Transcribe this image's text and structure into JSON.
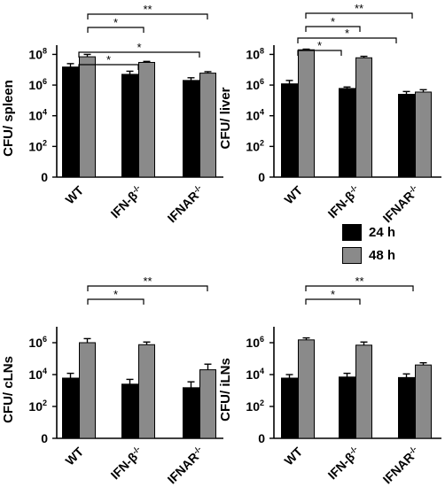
{
  "colors": {
    "series_24h": "#000000",
    "series_48h": "#8a8a8a"
  },
  "legend": {
    "items": [
      {
        "label": "24 h",
        "color": "#000000"
      },
      {
        "label": "48 h",
        "color": "#8a8a8a"
      }
    ]
  },
  "chart_data": [
    {
      "type": "bar",
      "scale": "log10",
      "ylabel": "CFU/ spleen",
      "categories": [
        "WT",
        "IFN-β",
        "IFNAR"
      ],
      "category_superscripts": [
        "",
        "-/-",
        "-/-"
      ],
      "ylim": [
        1,
        400000000
      ],
      "yticks": [
        {
          "value": 1,
          "label": "0"
        },
        {
          "value": 100,
          "label": "10",
          "sup": "2"
        },
        {
          "value": 10000,
          "label": "10",
          "sup": "4"
        },
        {
          "value": 1000000,
          "label": "10",
          "sup": "6"
        },
        {
          "value": 100000000,
          "label": "10",
          "sup": "8"
        }
      ],
      "series": [
        {
          "name": "24 h",
          "values": [
            15000000,
            5000000,
            2000000
          ],
          "errors": [
            25000000,
            8000000,
            3000000
          ]
        },
        {
          "name": "48 h",
          "values": [
            70000000,
            30000000,
            6000000
          ],
          "errors": [
            100000000,
            35000000,
            7500000
          ]
        }
      ],
      "significance": [
        {
          "from": 0,
          "to": 1,
          "label": "*"
        },
        {
          "from": 0,
          "to": 2,
          "label": "*"
        },
        {
          "from": 0,
          "to": 1,
          "label": "*"
        },
        {
          "from": 0,
          "to": 2,
          "label": "**"
        }
      ]
    },
    {
      "type": "bar",
      "scale": "log10",
      "ylabel": "CFU/ liver",
      "categories": [
        "WT",
        "IFN-β",
        "IFNAR"
      ],
      "category_superscripts": [
        "",
        "-/-",
        "-/-"
      ],
      "ylim": [
        1,
        400000000
      ],
      "yticks": [
        {
          "value": 1,
          "label": "0"
        },
        {
          "value": 100,
          "label": "10",
          "sup": "2"
        },
        {
          "value": 10000,
          "label": "10",
          "sup": "4"
        },
        {
          "value": 1000000,
          "label": "10",
          "sup": "6"
        },
        {
          "value": 100000000,
          "label": "10",
          "sup": "8"
        }
      ],
      "series": [
        {
          "name": "24 h",
          "values": [
            1200000,
            600000,
            250000
          ],
          "errors": [
            2000000,
            750000,
            380000
          ]
        },
        {
          "name": "48 h",
          "values": [
            200000000,
            60000000,
            350000
          ],
          "errors": [
            220000000,
            75000000,
            500000
          ]
        }
      ],
      "significance": [
        {
          "from": 0,
          "to": 1,
          "label": "*"
        },
        {
          "from": 0,
          "to": 2,
          "label": "*"
        },
        {
          "from": 0,
          "to": 1,
          "label": "*"
        },
        {
          "from": 0,
          "to": 2,
          "label": "**"
        }
      ]
    },
    {
      "type": "bar",
      "scale": "log10",
      "ylabel": "CFU/ cLNs",
      "categories": [
        "WT",
        "IFN-β",
        "IFNAR"
      ],
      "category_superscripts": [
        "",
        "-/-",
        "-/-"
      ],
      "ylim": [
        1,
        10000000
      ],
      "yticks": [
        {
          "value": 1,
          "label": "0"
        },
        {
          "value": 100,
          "label": "10",
          "sup": "2"
        },
        {
          "value": 10000,
          "label": "10",
          "sup": "4"
        },
        {
          "value": 1000000,
          "label": "10",
          "sup": "6"
        }
      ],
      "series": [
        {
          "name": "24 h",
          "values": [
            6000,
            2500,
            1500
          ],
          "errors": [
            12000,
            5000,
            3500
          ]
        },
        {
          "name": "48 h",
          "values": [
            1000000,
            750000,
            20000
          ],
          "errors": [
            1800000,
            1100000,
            45000
          ]
        }
      ],
      "significance": [
        {
          "from": 0,
          "to": 1,
          "label": "*"
        },
        {
          "from": 0,
          "to": 2,
          "label": "**"
        }
      ]
    },
    {
      "type": "bar",
      "scale": "log10",
      "ylabel": "CFU/ iLNs",
      "categories": [
        "WT",
        "IFN-β",
        "IFNAR"
      ],
      "category_superscripts": [
        "",
        "-/-",
        "-/-"
      ],
      "ylim": [
        1,
        10000000
      ],
      "yticks": [
        {
          "value": 1,
          "label": "0"
        },
        {
          "value": 100,
          "label": "10",
          "sup": "2"
        },
        {
          "value": 10000,
          "label": "10",
          "sup": "4"
        },
        {
          "value": 1000000,
          "label": "10",
          "sup": "6"
        }
      ],
      "series": [
        {
          "name": "24 h",
          "values": [
            6000,
            7000,
            6500
          ],
          "errors": [
            10000,
            12000,
            11000
          ]
        },
        {
          "name": "48 h",
          "values": [
            1500000,
            700000,
            40000
          ],
          "errors": [
            2000000,
            1100000,
            55000
          ]
        }
      ],
      "significance": [
        {
          "from": 0,
          "to": 1,
          "label": "*"
        },
        {
          "from": 0,
          "to": 2,
          "label": "**"
        }
      ]
    }
  ]
}
